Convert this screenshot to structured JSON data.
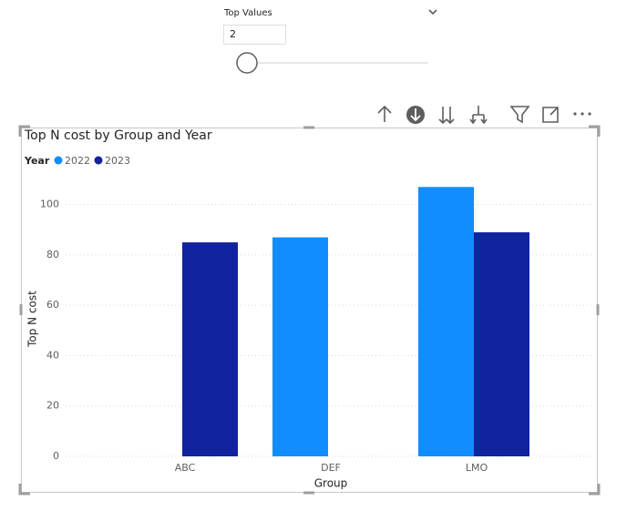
{
  "slicer": {
    "title": "Top Values",
    "value": 2
  },
  "chart_data": {
    "type": "bar",
    "title": "Top N cost by Group and Year",
    "legend_title": "Year",
    "x_label": "Group",
    "y_label": "Top N cost",
    "categories": [
      "ABC",
      "DEF",
      "LMO"
    ],
    "series": [
      {
        "name": "2022",
        "color": "#118dff",
        "values": [
          null,
          87,
          107
        ]
      },
      {
        "name": "2023",
        "color": "#12239e",
        "values": [
          85,
          null,
          89
        ]
      }
    ],
    "ylim": [
      0,
      110
    ],
    "yticks": [
      0,
      20,
      40,
      60,
      80,
      100
    ],
    "grid": true
  }
}
